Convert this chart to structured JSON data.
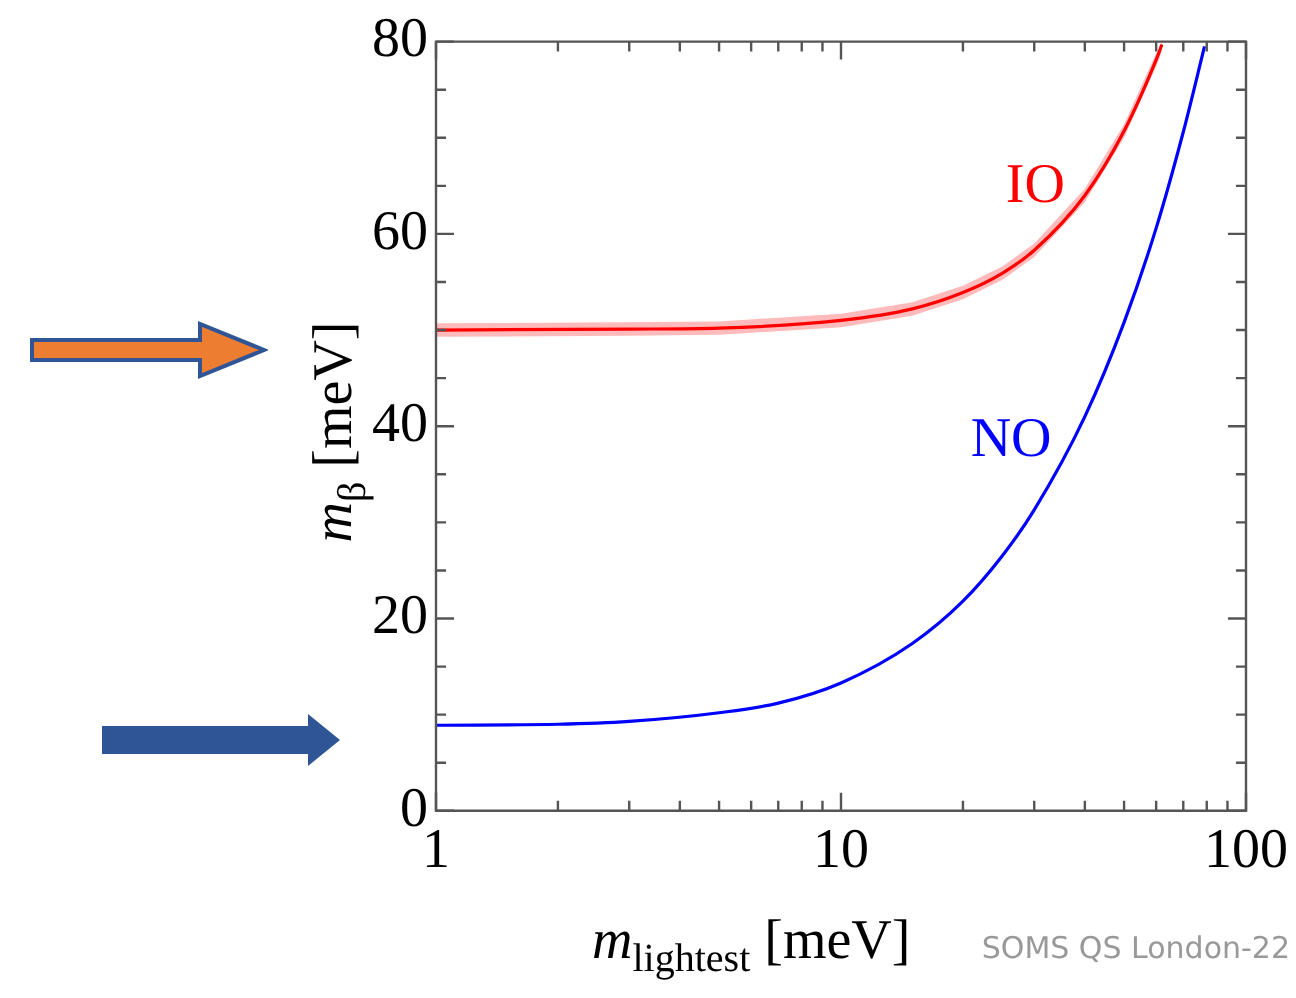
{
  "chart_data": {
    "type": "line",
    "xlabel": "m$_{lightest}$ [meV]",
    "ylabel": "m$_{β}$ [meV]",
    "log": "x",
    "xlim": [
      1,
      100
    ],
    "ylim": [
      0,
      80
    ],
    "xticks": [
      1,
      {
        "value": 2,
        "label": null
      },
      {
        "value": 3,
        "label": null
      },
      {
        "value": 4,
        "label": null
      },
      {
        "value": 5,
        "label": null
      },
      {
        "value": 6,
        "label": null
      },
      {
        "value": 7,
        "label": null
      },
      {
        "value": 8,
        "label": null
      },
      {
        "value": 9,
        "label": null
      },
      10,
      {
        "value": 20,
        "label": null
      },
      {
        "value": 30,
        "label": null
      },
      {
        "value": 40,
        "label": null
      },
      {
        "value": 50,
        "label": null
      },
      {
        "value": 60,
        "label": null
      },
      {
        "value": 70,
        "label": null
      },
      {
        "value": 80,
        "label": null
      },
      {
        "value": 90,
        "label": null
      },
      100
    ],
    "yticks": [
      0,
      {
        "value": 5,
        "label": null
      },
      {
        "value": 10,
        "label": null
      },
      {
        "value": 15,
        "label": null
      },
      20,
      {
        "value": 25,
        "label": null
      },
      {
        "value": 30,
        "label": null
      },
      {
        "value": 35,
        "label": null
      },
      40,
      {
        "value": 45,
        "label": null
      },
      {
        "value": 50,
        "label": null
      },
      {
        "value": 55,
        "label": null
      },
      60,
      {
        "value": 65,
        "label": null
      },
      {
        "value": 70,
        "label": null
      },
      {
        "value": 75,
        "label": null
      },
      80
    ],
    "grid": false,
    "legend": false,
    "marker": "none",
    "line_style": "solid",
    "series": [
      {
        "name": "IO",
        "color": "#ff0000",
        "x": [
          1,
          3,
          5,
          10,
          15,
          20,
          25,
          30,
          40,
          50,
          60,
          62
        ],
        "values": [
          50.0,
          50.1,
          50.2,
          51.0,
          52.2,
          53.9,
          55.9,
          58.3,
          64.0,
          70.7,
          78.1,
          79.7
        ],
        "lower": [
          49.3,
          49.4,
          49.5,
          50.3,
          51.5,
          53.2,
          55.2,
          57.6,
          63.3,
          70.0,
          77.4,
          79.0
        ],
        "upper": [
          50.7,
          50.8,
          50.9,
          51.7,
          52.9,
          54.6,
          56.6,
          59.0,
          64.7,
          71.4,
          78.8,
          80.0
        ]
      },
      {
        "name": "NO",
        "color": "#0000ff",
        "x": [
          1,
          2,
          3,
          5,
          7,
          10,
          15,
          20,
          25,
          30,
          40,
          50,
          60,
          70,
          79
        ],
        "values": [
          8.9,
          9.0,
          9.3,
          10.2,
          11.2,
          13.3,
          17.4,
          21.8,
          26.5,
          31.3,
          41.0,
          50.8,
          60.6,
          70.6,
          79.5
        ]
      }
    ],
    "annotations": [
      "SOMS QS London-22"
    ]
  }
}
